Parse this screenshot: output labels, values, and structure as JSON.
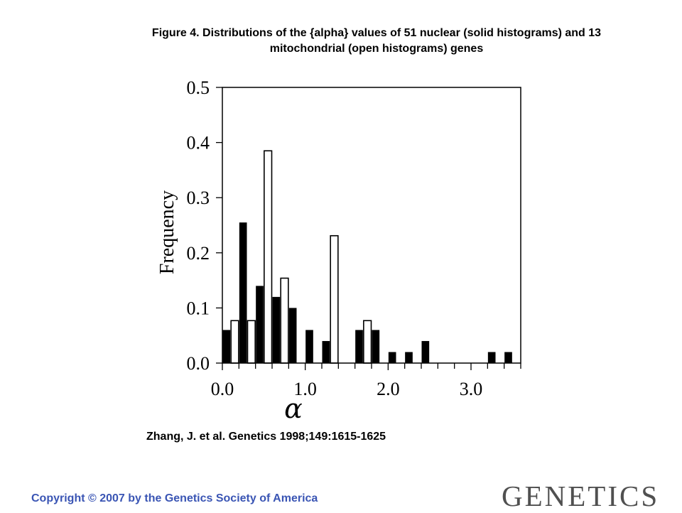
{
  "figure": {
    "title_line1": "Figure 4. Distributions of the {alpha} values of 51 nuclear (solid histograms) and 13",
    "title_line2": "mitochondrial (open histograms) genes",
    "citation": "Zhang, J. et al. Genetics 1998;149:1615-1625"
  },
  "footer": {
    "copyright": "Copyright © 2007 by the Genetics Society of America",
    "logo": "GENETICS"
  },
  "chart_data": {
    "type": "bar",
    "xlabel": "α",
    "ylabel": "Frequency",
    "xlim": [
      0.0,
      3.6
    ],
    "ylim": [
      0.0,
      0.5
    ],
    "x_ticks": [
      "0.0",
      "1.0",
      "2.0",
      "3.0"
    ],
    "y_ticks": [
      "0.0",
      "0.1",
      "0.2",
      "0.3",
      "0.4",
      "0.5"
    ],
    "grid": false,
    "bin_width": 0.2,
    "series": [
      {
        "style": "solid",
        "color": "#000000",
        "x": [
          0.0,
          0.2,
          0.4,
          0.6,
          0.8,
          1.0,
          1.2,
          1.6,
          1.8,
          2.0,
          2.2,
          2.4,
          3.2,
          3.4
        ],
        "values": [
          0.06,
          0.255,
          0.14,
          0.12,
          0.1,
          0.06,
          0.04,
          0.06,
          0.06,
          0.02,
          0.02,
          0.04,
          0.02,
          0.02
        ]
      },
      {
        "style": "open",
        "color": "#000000",
        "x": [
          0.0,
          0.2,
          0.4,
          0.6,
          1.2,
          1.6
        ],
        "values": [
          0.077,
          0.077,
          0.385,
          0.154,
          0.231,
          0.077
        ]
      }
    ]
  }
}
